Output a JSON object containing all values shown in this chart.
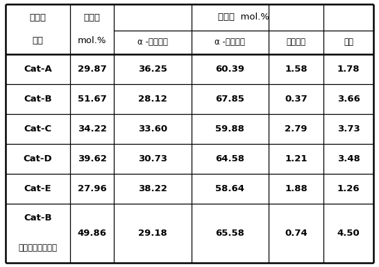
{
  "header_top": [
    "催化剂",
    "转化率",
    "选择性  mol.%"
  ],
  "header_bot": [
    "代号",
    "mol.%",
    "α -四氢萘醇",
    "α -四氢萘酮",
    "过氧化物",
    "其他"
  ],
  "rows": [
    [
      "Cat-A",
      "29.87",
      "36.25",
      "60.39",
      "1.58",
      "1.78"
    ],
    [
      "Cat-B",
      "51.67",
      "28.12",
      "67.85",
      "0.37",
      "3.66"
    ],
    [
      "Cat-C",
      "34.22",
      "33.60",
      "59.88",
      "2.79",
      "3.73"
    ],
    [
      "Cat-D",
      "39.62",
      "30.73",
      "64.58",
      "1.21",
      "3.48"
    ],
    [
      "Cat-E",
      "27.96",
      "38.22",
      "58.64",
      "1.88",
      "1.26"
    ],
    [
      "Cat-B",
      "（循环反应４次）",
      "49.86",
      "29.18",
      "65.58",
      "0.74",
      "4.50"
    ]
  ],
  "bg_color": "#ffffff",
  "border_color": "#000000",
  "lw_outer": 1.8,
  "lw_inner": 0.9,
  "lw_thick": 1.8,
  "font_size": 9.5,
  "small_font_size": 8.5
}
